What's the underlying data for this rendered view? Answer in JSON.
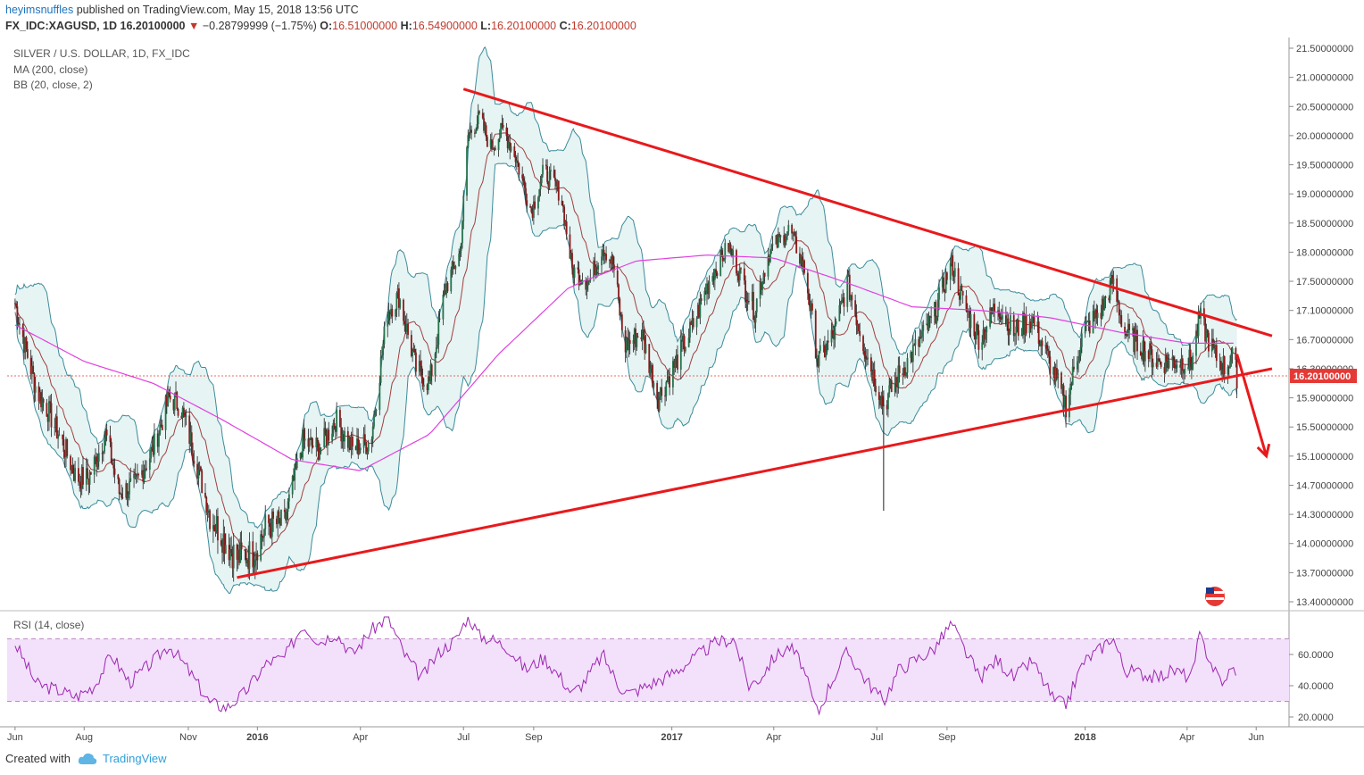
{
  "header": {
    "author": "heyimsnuffles",
    "published_text": "published on TradingView.com, May 15, 2018 13:56 UTC",
    "symbol": "FX_IDC:XAGUSD, 1D",
    "last": "16.20100000",
    "change": "−0.28799999 (−1.75%)",
    "open_label": "O:",
    "open": "16.51000000",
    "high_label": "H:",
    "high": "16.54900000",
    "low_label": "L:",
    "low": "16.20100000",
    "close_label": "C:",
    "close": "16.20100000"
  },
  "legend": {
    "title": "SILVER / U.S. DOLLAR, 1D, FX_IDC",
    "ma": "MA (200, close)",
    "bb": "BB (20, close, 2)",
    "rsi": "RSI (14, close)"
  },
  "footer": {
    "created_with": "Created with",
    "brand": "TradingView"
  },
  "colors": {
    "candle_up": "#26734d",
    "candle_down": "#8b1a1a",
    "bb_band": "#3c8b9a",
    "bb_fill": "#e6f4f3",
    "bb_basis": "#a04040",
    "ma200": "#e040e0",
    "trendline": "#e8191c",
    "rsi_line": "#9c27b0",
    "rsi_fill": "#f3e0fb",
    "price_tag": "#e53935"
  },
  "chart_data": {
    "type": "line",
    "series_kind": "candlestick",
    "price_axis": {
      "ticks": [
        "21.50000000",
        "21.00000000",
        "20.50000000",
        "20.00000000",
        "19.50000000",
        "19.00000000",
        "18.50000000",
        "18.00000000",
        "17.50000000",
        "17.10000000",
        "16.70000000",
        "16.30000000",
        "15.90000000",
        "15.50000000",
        "15.10000000",
        "14.70000000",
        "14.30000000",
        "14.00000000",
        "13.70000000",
        "13.40000000"
      ],
      "current_value": "16.20100000"
    },
    "rsi_axis": {
      "ticks": [
        "60.0000",
        "40.0000",
        "20.0000"
      ],
      "upper_band": 70,
      "lower_band": 30,
      "range": [
        16,
        84
      ]
    },
    "x_axis": {
      "labels": [
        "Jun",
        "Aug",
        "Nov",
        "2016",
        "Apr",
        "Jul",
        "Sep",
        "2017",
        "Apr",
        "Jul",
        "Sep",
        "2018",
        "Apr",
        "Jun"
      ]
    },
    "price_path": [
      [
        "2015-06-01",
        17.2
      ],
      [
        "2015-06-10",
        16.6
      ],
      [
        "2015-06-20",
        16.0
      ],
      [
        "2015-07-01",
        15.7
      ],
      [
        "2015-07-15",
        15.2
      ],
      [
        "2015-07-25",
        14.8
      ],
      [
        "2015-08-05",
        14.8
      ],
      [
        "2015-08-20",
        15.4
      ],
      [
        "2015-09-01",
        14.6
      ],
      [
        "2015-09-15",
        14.7
      ],
      [
        "2015-10-01",
        15.2
      ],
      [
        "2015-10-15",
        15.9
      ],
      [
        "2015-10-25",
        15.8
      ],
      [
        "2015-11-05",
        15.2
      ],
      [
        "2015-11-20",
        14.3
      ],
      [
        "2015-12-05",
        14.0
      ],
      [
        "2015-12-14",
        13.85
      ],
      [
        "2015-12-28",
        13.9
      ],
      [
        "2016-01-10",
        14.2
      ],
      [
        "2016-01-25",
        14.2
      ],
      [
        "2016-02-10",
        15.3
      ],
      [
        "2016-02-25",
        15.2
      ],
      [
        "2016-03-10",
        15.6
      ],
      [
        "2016-03-25",
        15.2
      ],
      [
        "2016-04-10",
        15.3
      ],
      [
        "2016-04-25",
        17.1
      ],
      [
        "2016-05-05",
        17.3
      ],
      [
        "2016-05-20",
        16.3
      ],
      [
        "2016-06-01",
        16.1
      ],
      [
        "2016-06-15",
        17.4
      ],
      [
        "2016-06-28",
        18.0
      ],
      [
        "2016-07-05",
        20.0
      ],
      [
        "2016-07-15",
        20.3
      ],
      [
        "2016-07-25",
        19.8
      ],
      [
        "2016-08-05",
        20.1
      ],
      [
        "2016-08-15",
        19.7
      ],
      [
        "2016-08-30",
        18.7
      ],
      [
        "2016-09-10",
        19.4
      ],
      [
        "2016-09-25",
        19.0
      ],
      [
        "2016-10-05",
        17.7
      ],
      [
        "2016-10-20",
        17.5
      ],
      [
        "2016-11-01",
        18.1
      ],
      [
        "2016-11-10",
        17.8
      ],
      [
        "2016-11-20",
        16.6
      ],
      [
        "2016-12-05",
        16.8
      ],
      [
        "2016-12-20",
        15.9
      ],
      [
        "2017-01-05",
        16.4
      ],
      [
        "2017-01-20",
        16.9
      ],
      [
        "2017-02-05",
        17.6
      ],
      [
        "2017-02-20",
        18.1
      ],
      [
        "2017-03-05",
        17.5
      ],
      [
        "2017-03-15",
        17.1
      ],
      [
        "2017-03-28",
        18.0
      ],
      [
        "2017-04-15",
        18.4
      ],
      [
        "2017-04-28",
        17.7
      ],
      [
        "2017-05-10",
        16.4
      ],
      [
        "2017-05-25",
        16.8
      ],
      [
        "2017-06-05",
        17.5
      ],
      [
        "2017-06-20",
        16.6
      ],
      [
        "2017-07-07",
        15.8
      ],
      [
        "2017-07-20",
        16.2
      ],
      [
        "2017-08-05",
        16.6
      ],
      [
        "2017-08-20",
        17.0
      ],
      [
        "2017-09-05",
        17.8
      ],
      [
        "2017-09-15",
        17.2
      ],
      [
        "2017-09-30",
        16.7
      ],
      [
        "2017-10-15",
        17.2
      ],
      [
        "2017-10-30",
        16.8
      ],
      [
        "2017-11-15",
        17.0
      ],
      [
        "2017-12-05",
        16.2
      ],
      [
        "2017-12-15",
        15.8
      ],
      [
        "2017-12-30",
        16.8
      ],
      [
        "2018-01-15",
        17.1
      ],
      [
        "2018-01-25",
        17.5
      ],
      [
        "2018-02-05",
        16.8
      ],
      [
        "2018-02-20",
        16.6
      ],
      [
        "2018-03-05",
        16.4
      ],
      [
        "2018-03-20",
        16.4
      ],
      [
        "2018-04-05",
        16.4
      ],
      [
        "2018-04-12",
        17.0
      ],
      [
        "2018-04-25",
        16.5
      ],
      [
        "2018-05-05",
        16.3
      ],
      [
        "2018-05-10",
        16.5
      ],
      [
        "2018-05-15",
        16.2
      ]
    ],
    "ma200_path": [
      [
        "2015-06-01",
        16.9
      ],
      [
        "2015-08-01",
        16.4
      ],
      [
        "2015-10-01",
        16.1
      ],
      [
        "2015-12-01",
        15.6
      ],
      [
        "2016-02-01",
        15.05
      ],
      [
        "2016-04-01",
        14.9
      ],
      [
        "2016-06-01",
        15.4
      ],
      [
        "2016-08-01",
        16.5
      ],
      [
        "2016-10-01",
        17.4
      ],
      [
        "2016-12-01",
        17.85
      ],
      [
        "2017-02-01",
        17.95
      ],
      [
        "2017-04-01",
        17.9
      ],
      [
        "2017-06-01",
        17.5
      ],
      [
        "2017-08-01",
        17.15
      ],
      [
        "2017-10-01",
        17.1
      ],
      [
        "2017-12-01",
        17.0
      ],
      [
        "2018-02-01",
        16.8
      ],
      [
        "2018-04-01",
        16.65
      ],
      [
        "2018-05-15",
        16.65
      ]
    ],
    "rsi_path": [
      [
        "2015-06-01",
        67
      ],
      [
        "2015-06-20",
        41
      ],
      [
        "2015-07-10",
        37
      ],
      [
        "2015-07-25",
        33
      ],
      [
        "2015-08-10",
        40
      ],
      [
        "2015-08-25",
        60
      ],
      [
        "2015-09-10",
        42
      ],
      [
        "2015-09-30",
        55
      ],
      [
        "2015-10-15",
        66
      ],
      [
        "2015-11-01",
        50
      ],
      [
        "2015-11-20",
        29
      ],
      [
        "2015-12-05",
        26
      ],
      [
        "2015-12-20",
        35
      ],
      [
        "2016-01-10",
        55
      ],
      [
        "2016-01-25",
        58
      ],
      [
        "2016-02-10",
        79
      ],
      [
        "2016-02-25",
        68
      ],
      [
        "2016-03-10",
        74
      ],
      [
        "2016-03-25",
        60
      ],
      [
        "2016-04-10",
        75
      ],
      [
        "2016-04-25",
        84
      ],
      [
        "2016-05-10",
        60
      ],
      [
        "2016-05-25",
        45
      ],
      [
        "2016-06-10",
        62
      ],
      [
        "2016-06-25",
        70
      ],
      [
        "2016-07-05",
        85
      ],
      [
        "2016-07-15",
        72
      ],
      [
        "2016-07-25",
        70
      ],
      [
        "2016-08-10",
        64
      ],
      [
        "2016-08-25",
        50
      ],
      [
        "2016-09-10",
        58
      ],
      [
        "2016-09-25",
        45
      ],
      [
        "2016-10-05",
        35
      ],
      [
        "2016-10-15",
        42
      ],
      [
        "2016-11-01",
        60
      ],
      [
        "2016-11-15",
        40
      ],
      [
        "2016-11-25",
        35
      ],
      [
        "2016-12-10",
        40
      ],
      [
        "2016-12-25",
        45
      ],
      [
        "2017-01-10",
        52
      ],
      [
        "2017-01-25",
        60
      ],
      [
        "2017-02-10",
        68
      ],
      [
        "2017-02-25",
        70
      ],
      [
        "2017-03-10",
        40
      ],
      [
        "2017-03-20",
        45
      ],
      [
        "2017-04-01",
        58
      ],
      [
        "2017-04-15",
        65
      ],
      [
        "2017-04-25",
        55
      ],
      [
        "2017-05-05",
        32
      ],
      [
        "2017-05-10",
        22
      ],
      [
        "2017-05-20",
        40
      ],
      [
        "2017-06-05",
        62
      ],
      [
        "2017-06-20",
        45
      ],
      [
        "2017-07-07",
        30
      ],
      [
        "2017-07-20",
        50
      ],
      [
        "2017-08-05",
        57
      ],
      [
        "2017-08-20",
        63
      ],
      [
        "2017-09-05",
        80
      ],
      [
        "2017-09-15",
        65
      ],
      [
        "2017-09-30",
        45
      ],
      [
        "2017-10-15",
        57
      ],
      [
        "2017-10-30",
        45
      ],
      [
        "2017-11-15",
        56
      ],
      [
        "2017-12-05",
        30
      ],
      [
        "2017-12-15",
        28
      ],
      [
        "2017-12-30",
        55
      ],
      [
        "2018-01-15",
        64
      ],
      [
        "2018-01-25",
        72
      ],
      [
        "2018-02-05",
        50
      ],
      [
        "2018-02-20",
        48
      ],
      [
        "2018-03-05",
        45
      ],
      [
        "2018-03-20",
        50
      ],
      [
        "2018-04-05",
        45
      ],
      [
        "2018-04-12",
        72
      ],
      [
        "2018-04-25",
        50
      ],
      [
        "2018-05-05",
        40
      ],
      [
        "2018-05-10",
        55
      ],
      [
        "2018-05-15",
        42
      ]
    ],
    "trendlines": [
      {
        "name": "upper",
        "from": [
          "2016-07-01",
          20.8
        ],
        "to": [
          "2018-06-15",
          16.75
        ]
      },
      {
        "name": "lower",
        "from": [
          "2015-12-14",
          13.65
        ],
        "to": [
          "2018-06-15",
          16.3
        ]
      },
      {
        "name": "forecast-arrow",
        "from": [
          "2018-05-15",
          16.5
        ],
        "to": [
          "2018-06-10",
          15.1
        ]
      }
    ]
  }
}
